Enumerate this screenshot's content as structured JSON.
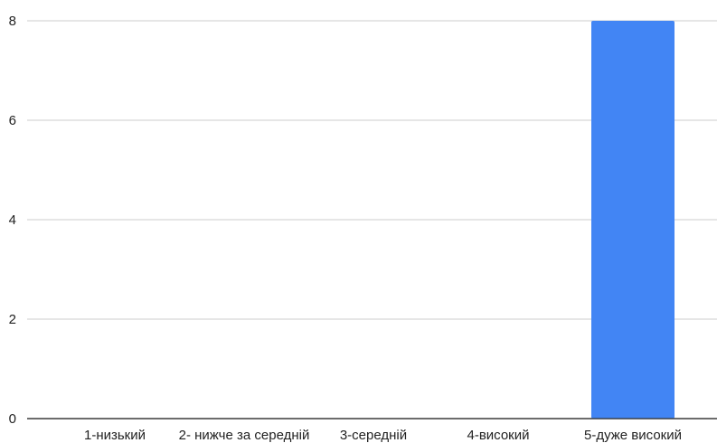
{
  "chart_data": {
    "type": "bar",
    "categories": [
      "1-низький",
      "2- нижче за середній",
      "3-середній",
      "4-високий",
      "5-дуже високий"
    ],
    "values": [
      0,
      0,
      0,
      0,
      8
    ],
    "title": "",
    "xlabel": "",
    "ylabel": "",
    "ylim": [
      0,
      8
    ],
    "yticks": [
      0,
      2,
      4,
      6,
      8
    ],
    "grid": true,
    "legend": "none",
    "bar_color": "#4285f4"
  }
}
